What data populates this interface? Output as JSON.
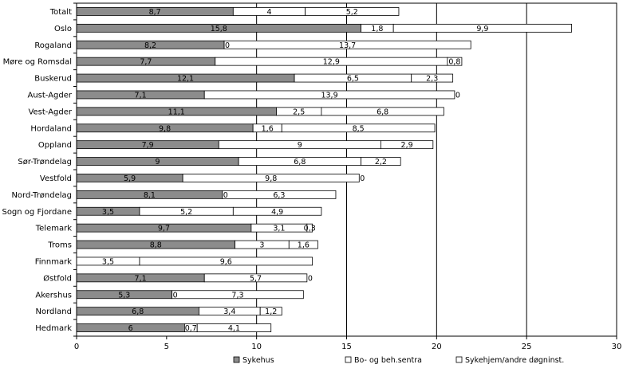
{
  "chart_data": {
    "type": "bar",
    "orientation": "horizontal",
    "stacked": true,
    "categories": [
      "Totalt",
      "Oslo",
      "Rogaland",
      "Møre og Romsdal",
      "Buskerud",
      "Aust-Agder",
      "Vest-Agder",
      "Hordaland",
      "Oppland",
      "Sør-Trøndelag",
      "Vestfold",
      "Nord-Trøndelag",
      "Sogn og Fjordane",
      "Telemark",
      "Troms",
      "Finnmark",
      "Østfold",
      "Akershus",
      "Nordland",
      "Hedmark"
    ],
    "series": [
      {
        "name": "Sykehus",
        "color": "#8c8c8c",
        "values": [
          8.7,
          15.8,
          8.2,
          7.7,
          12.1,
          7.1,
          11.1,
          9.8,
          7.9,
          9,
          5.9,
          8.1,
          3.5,
          9.7,
          8.8,
          0,
          7.1,
          5.3,
          6.8,
          6
        ],
        "labels": [
          "8,7",
          "15,8",
          "8,2",
          "7,7",
          "12,1",
          "7,1",
          "11,1",
          "9,8",
          "7,9",
          "9",
          "5,9",
          "8,1",
          "3,5",
          "9,7",
          "8,8",
          "",
          "7,1",
          "5,3",
          "6,8",
          "6"
        ]
      },
      {
        "name": "Bo- og beh.sentra",
        "color": "#ffffff",
        "values": [
          4,
          1.8,
          0,
          12.9,
          6.5,
          13.9,
          2.5,
          1.6,
          9,
          6.8,
          9.8,
          0,
          5.2,
          3.1,
          3,
          3.5,
          5.7,
          0,
          3.4,
          0.7
        ],
        "labels": [
          "4",
          "1,8",
          "0",
          "12,9",
          "6,5",
          "13,9",
          "2,5",
          "1,6",
          "9",
          "6,8",
          "9,8",
          "0",
          "5,2",
          "3,1",
          "3",
          "3,5",
          "5,7",
          "0",
          "3,4",
          "0,7"
        ]
      },
      {
        "name": "Sykehjem/andre døgninst.",
        "color": "#ffffff",
        "values": [
          5.2,
          9.9,
          13.7,
          0.8,
          2.3,
          0,
          6.8,
          8.5,
          2.9,
          2.2,
          0,
          6.3,
          4.9,
          0.3,
          1.6,
          9.6,
          0,
          7.3,
          1.2,
          4.1
        ],
        "labels": [
          "5,2",
          "9,9",
          "13,7",
          "0,8",
          "2,3",
          "0",
          "6,8",
          "8,5",
          "2,9",
          "2,2",
          "0",
          "6,3",
          "4,9",
          "0,3",
          "1,6",
          "9,6",
          "0",
          "7,3",
          "1,2",
          "4,1"
        ]
      }
    ],
    "xlim": [
      0,
      30
    ],
    "x_ticks": [
      "0",
      "5",
      "10",
      "15",
      "20",
      "25",
      "30"
    ],
    "gridlines": "vertical, at 10, 15, 20, 25",
    "legend_position": "bottom"
  }
}
